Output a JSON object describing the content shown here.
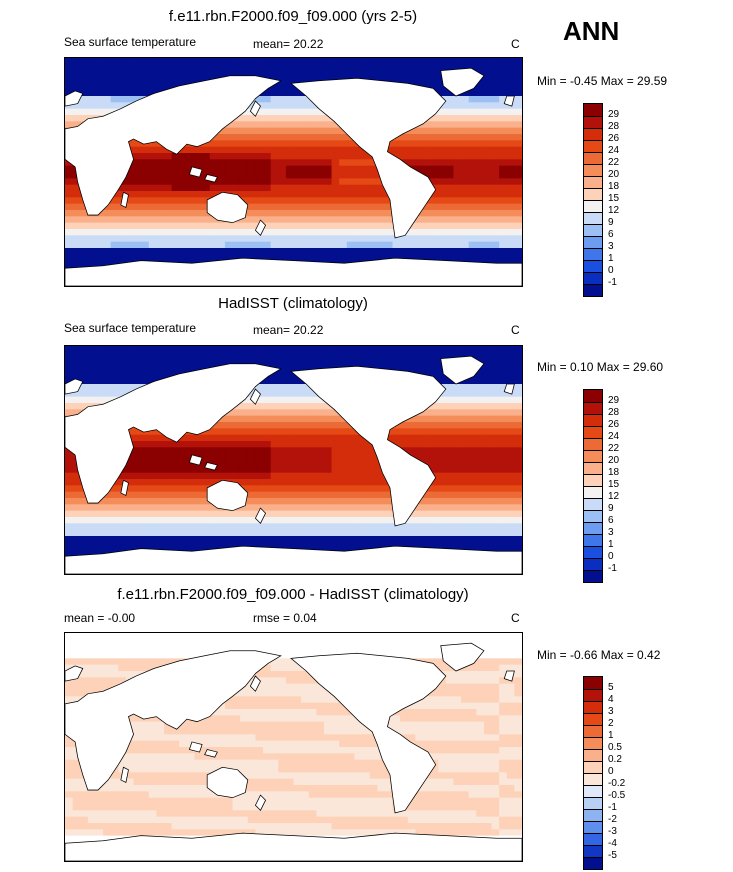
{
  "season": "ANN",
  "panels": [
    {
      "title": "f.e11.rbn.F2000.f09_f09.000 (yrs 2-5)",
      "left_label": "Sea surface temperature",
      "stat_label": "mean=  20.22",
      "units": "C",
      "minmax": "Min =  -0.45 Max =  29.59",
      "levels": [
        "29",
        "28",
        "26",
        "24",
        "22",
        "20",
        "18",
        "15",
        "12",
        "9",
        "6",
        "3",
        "1",
        "0",
        "-1"
      ],
      "colors": [
        "#8b0000",
        "#b3120a",
        "#d42d0c",
        "#e54a16",
        "#ec6a35",
        "#f58d5b",
        "#fab08a",
        "#fdd2b8",
        "#f4f2f1",
        "#c9dbf7",
        "#9cbff4",
        "#6d9df0",
        "#3f77ea",
        "#1b4fe0",
        "#0a2fc0",
        "#02108f"
      ],
      "field": "sst"
    },
    {
      "title": "HadISST (climatology)",
      "left_label": "Sea surface temperature",
      "stat_label": "mean=  20.22",
      "units": "C",
      "minmax": "Min =  0.10 Max =  29.60",
      "levels": [
        "29",
        "28",
        "26",
        "24",
        "22",
        "20",
        "18",
        "15",
        "12",
        "9",
        "6",
        "3",
        "1",
        "0",
        "-1"
      ],
      "colors": [
        "#8b0000",
        "#b3120a",
        "#d42d0c",
        "#e54a16",
        "#ec6a35",
        "#f58d5b",
        "#fab08a",
        "#fdd2b8",
        "#f4f2f1",
        "#c9dbf7",
        "#9cbff4",
        "#6d9df0",
        "#3f77ea",
        "#1b4fe0",
        "#0a2fc0",
        "#02108f"
      ],
      "field": "sst"
    },
    {
      "title": "f.e11.rbn.F2000.f09_f09.000 - HadISST (climatology)",
      "left_label": "mean =  -0.00",
      "stat_label": "rmse =   0.04",
      "units": "C",
      "minmax": "Min =  -0.66 Max =   0.42",
      "levels": [
        "5",
        "4",
        "3",
        "2",
        "1",
        "0.5",
        "0.2",
        "0",
        "-0.2",
        "-0.5",
        "-1",
        "-2",
        "-3",
        "-4",
        "-5"
      ],
      "colors": [
        "#8b0000",
        "#b3120a",
        "#d42d0c",
        "#e54a16",
        "#ec6a35",
        "#f58d5b",
        "#fab08a",
        "#fdd2b8",
        "#fbe7da",
        "#dfe9f9",
        "#b9d0f5",
        "#8eb3f1",
        "#5f8fec",
        "#3366e4",
        "#1237c4",
        "#02108f"
      ],
      "field": "diff"
    }
  ]
}
